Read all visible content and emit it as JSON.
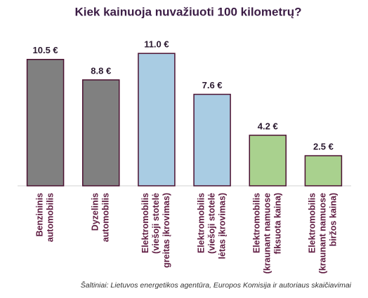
{
  "chart_data": {
    "type": "bar",
    "title": "Kiek kainuoja nuvažiuoti 100 kilometrų?",
    "categories": [
      [
        "Benzininis",
        "automobilis"
      ],
      [
        "Dyzelinis",
        "automobilis"
      ],
      [
        "Elektromobilis",
        "(viešoji stotelė",
        "greitas įkrovimas)"
      ],
      [
        "Elektromobilis",
        "(viešoji stotelė",
        "lėtas įkrovimas)"
      ],
      [
        "Elektromobilis",
        "(kraunant namuose",
        "fiksuota kaina)"
      ],
      [
        "Elektromobilis",
        "(kraunant namuose",
        "biržos kaina)"
      ]
    ],
    "values": [
      10.5,
      8.8,
      11.0,
      7.6,
      4.2,
      2.5
    ],
    "value_labels": [
      "10.5 €",
      "8.8 €",
      "11.0 €",
      "7.6 €",
      "4.2 €",
      "2.5 €"
    ],
    "colors": [
      "#808080",
      "#808080",
      "#a9cce3",
      "#a9cce3",
      "#a9d18e",
      "#a9d18e"
    ],
    "edge_color": "#4a1030",
    "ylim": [
      0,
      12
    ],
    "source": "Šaltiniai: Lietuvos energetikos agentūra, Europos Komisija ir autoriaus skaičiavimai"
  }
}
